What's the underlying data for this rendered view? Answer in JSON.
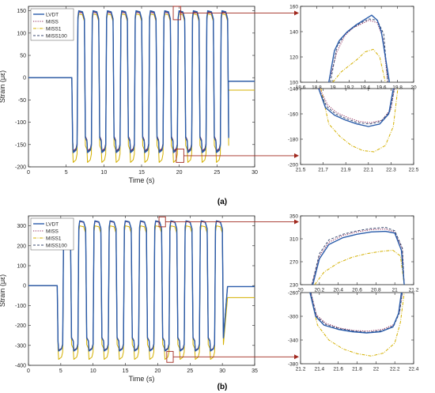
{
  "colors": {
    "LVDT": "#2a5caa",
    "MISS": "#8b2252",
    "MISS1": "#d4b000",
    "MISS100": "#3a4a70",
    "axis": "#222222",
    "marker": "#a0281e"
  },
  "panel_labels": [
    "(a)",
    "(b)"
  ],
  "chart_data": [
    {
      "id": "a-main",
      "type": "line",
      "title": "",
      "xlabel": "Time (s)",
      "ylabel": "Strain (με)",
      "xlim": [
        0,
        30
      ],
      "ylim": [
        -200,
        160
      ],
      "xticks": [
        0,
        5,
        10,
        15,
        20,
        25,
        30
      ],
      "xtick_labels": [
        "0",
        "5",
        "10",
        "15",
        "20",
        "25",
        "30"
      ],
      "yticks": [
        -200,
        -150,
        -100,
        -50,
        0,
        50,
        100,
        150
      ],
      "ytick_labels": [
        "-200",
        "-150",
        "-100",
        "-50",
        "0",
        "50",
        "100",
        "150"
      ],
      "grid": false,
      "legend_position": "top-left",
      "series": [
        {
          "name": "LVDT",
          "style": "solid"
        },
        {
          "name": "MISS",
          "style": "dotted"
        },
        {
          "name": "MISS1",
          "style": "dashdot"
        },
        {
          "name": "MISS100",
          "style": "dashed"
        }
      ],
      "cycles": {
        "start": 5.8,
        "period": 1.9,
        "count": 11,
        "max": 150,
        "min": -168,
        "miss1_max": 143,
        "miss1_min": -190,
        "end": 26.5,
        "miss1_tail": -28,
        "lvdt_tail": -8
      },
      "zoom_boxes": [
        {
          "x": [
            19.2,
            20.2
          ],
          "y": [
            130,
            160
          ]
        },
        {
          "x": [
            19.6,
            20.6
          ],
          "y": [
            -190,
            -160
          ]
        }
      ]
    },
    {
      "id": "a-zoom-top",
      "type": "line",
      "title": "",
      "xlabel": "",
      "ylabel": "",
      "xlim": [
        18.6,
        20
      ],
      "ylim": [
        100,
        160
      ],
      "xticks": [
        18.6,
        18.8,
        19,
        19.2,
        19.4,
        19.6,
        19.8,
        20
      ],
      "xtick_labels": [
        "18.6",
        "18.8",
        "19",
        "19.2",
        "19.4",
        "19.6",
        "19.8",
        "20"
      ],
      "yticks": [
        100,
        120,
        140,
        160
      ],
      "ytick_labels": [
        "100",
        "120",
        "140",
        "160"
      ],
      "grid": false,
      "series": [
        {
          "name": "LVDT",
          "x": [
            18.95,
            19.02,
            19.08,
            19.18,
            19.28,
            19.38,
            19.48,
            19.55,
            19.6,
            19.65,
            19.7
          ],
          "y": [
            100,
            125,
            133,
            140,
            145,
            149,
            153,
            149,
            140,
            120,
            100
          ]
        },
        {
          "name": "MISS",
          "x": [
            18.95,
            19.05,
            19.15,
            19.25,
            19.35,
            19.45,
            19.55,
            19.62,
            19.68
          ],
          "y": [
            100,
            124,
            137,
            143,
            146,
            149,
            147,
            135,
            100
          ]
        },
        {
          "name": "MISS1",
          "x": [
            19.0,
            19.1,
            19.2,
            19.3,
            19.4,
            19.5,
            19.58,
            19.65
          ],
          "y": [
            100,
            108,
            113,
            118,
            124,
            126,
            120,
            100
          ]
        },
        {
          "name": "MISS100",
          "x": [
            18.97,
            19.05,
            19.15,
            19.25,
            19.35,
            19.45,
            19.55,
            19.63,
            19.68
          ],
          "y": [
            100,
            128,
            138,
            143,
            147,
            150,
            149,
            138,
            100
          ]
        }
      ]
    },
    {
      "id": "a-zoom-bottom",
      "type": "line",
      "title": "",
      "xlabel": "",
      "ylabel": "",
      "xlim": [
        21.5,
        22.5
      ],
      "ylim": [
        -200,
        -140
      ],
      "xticks": [
        21.5,
        21.7,
        21.9,
        22.1,
        22.3,
        22.5
      ],
      "xtick_labels": [
        "21.5",
        "21.7",
        "21.9",
        "22.1",
        "22.3",
        "22.5"
      ],
      "yticks": [
        -200,
        -180,
        -160,
        -140
      ],
      "ytick_labels": [
        "-200",
        "-180",
        "-160",
        "-140"
      ],
      "grid": false,
      "series": [
        {
          "name": "LVDT",
          "x": [
            21.66,
            21.72,
            21.8,
            21.9,
            22.0,
            22.1,
            22.2,
            22.28,
            22.32
          ],
          "y": [
            -140,
            -155,
            -161,
            -165,
            -168,
            -170,
            -168,
            -160,
            -140
          ]
        },
        {
          "name": "MISS",
          "x": [
            21.67,
            21.74,
            21.82,
            21.92,
            22.02,
            22.12,
            22.22,
            22.3,
            22.33
          ],
          "y": [
            -140,
            -153,
            -159,
            -163,
            -166,
            -167,
            -165,
            -156,
            -140
          ]
        },
        {
          "name": "MISS1",
          "x": [
            21.68,
            21.75,
            21.85,
            21.95,
            22.05,
            22.15,
            22.25,
            22.32,
            22.36
          ],
          "y": [
            -140,
            -168,
            -178,
            -185,
            -189,
            -190,
            -185,
            -170,
            -140
          ]
        },
        {
          "name": "MISS100",
          "x": [
            21.66,
            21.73,
            21.81,
            21.91,
            22.01,
            22.11,
            22.21,
            22.29,
            22.33
          ],
          "y": [
            -140,
            -154,
            -160,
            -164,
            -167,
            -168,
            -166,
            -158,
            -140
          ]
        }
      ]
    },
    {
      "id": "b-main",
      "type": "line",
      "title": "",
      "xlabel": "Time (s)",
      "ylabel": "Strain (με)",
      "xlim": [
        0,
        35
      ],
      "ylim": [
        -400,
        350
      ],
      "xticks": [
        0,
        5,
        10,
        15,
        20,
        25,
        30,
        35
      ],
      "xtick_labels": [
        "0",
        "5",
        "10",
        "15",
        "20",
        "25",
        "30",
        "35"
      ],
      "yticks": [
        -400,
        -300,
        -200,
        -100,
        0,
        100,
        200,
        300
      ],
      "ytick_labels": [
        "-400",
        "-300",
        "-200",
        "-100",
        "0",
        "100",
        "200",
        "300"
      ],
      "grid": false,
      "legend_position": "top-left",
      "series": [
        {
          "name": "LVDT",
          "style": "solid"
        },
        {
          "name": "MISS",
          "style": "dotted"
        },
        {
          "name": "MISS1",
          "style": "dashdot"
        },
        {
          "name": "MISS100",
          "style": "dashed"
        }
      ],
      "cycles": {
        "start": 4.5,
        "period": 2.35,
        "count": 11,
        "max": 325,
        "min": -328,
        "miss1_max": 300,
        "miss1_min": -370,
        "end": 30.8,
        "miss1_tail": -60,
        "lvdt_tail": -5
      },
      "zoom_boxes": [
        {
          "x": [
            20.2,
            21.2
          ],
          "y": [
            295,
            345
          ]
        },
        {
          "x": [
            21.4,
            22.4
          ],
          "y": [
            -385,
            -330
          ]
        }
      ]
    },
    {
      "id": "b-zoom-top",
      "type": "line",
      "title": "",
      "xlabel": "",
      "ylabel": "",
      "xlim": [
        20,
        21.2
      ],
      "ylim": [
        230,
        350
      ],
      "xticks": [
        20,
        20.2,
        20.4,
        20.6,
        20.8,
        21,
        21.2
      ],
      "xtick_labels": [
        "20",
        "20.2",
        "20.4",
        "20.6",
        "20.8",
        "21",
        "21.2"
      ],
      "yticks": [
        230,
        270,
        310,
        350
      ],
      "ytick_labels": [
        "230",
        "270",
        "310",
        "350"
      ],
      "grid": false,
      "series": [
        {
          "name": "LVDT",
          "x": [
            20.13,
            20.2,
            20.3,
            20.45,
            20.6,
            20.75,
            20.9,
            21.0,
            21.07,
            21.1
          ],
          "y": [
            230,
            275,
            300,
            312,
            318,
            322,
            323,
            320,
            290,
            230
          ]
        },
        {
          "name": "MISS",
          "x": [
            20.12,
            20.2,
            20.3,
            20.45,
            20.6,
            20.75,
            20.9,
            21.0,
            21.08,
            21.1
          ],
          "y": [
            230,
            280,
            304,
            316,
            322,
            326,
            327,
            322,
            292,
            230
          ]
        },
        {
          "name": "MISS1",
          "x": [
            20.15,
            20.25,
            20.4,
            20.55,
            20.7,
            20.85,
            20.98,
            21.06,
            21.1
          ],
          "y": [
            230,
            252,
            268,
            278,
            284,
            288,
            290,
            280,
            230
          ]
        },
        {
          "name": "MISS100",
          "x": [
            20.12,
            20.2,
            20.3,
            20.45,
            20.6,
            20.75,
            20.9,
            21.0,
            21.08,
            21.1
          ],
          "y": [
            230,
            284,
            308,
            318,
            324,
            328,
            330,
            324,
            294,
            230
          ]
        }
      ]
    },
    {
      "id": "b-zoom-bottom",
      "type": "line",
      "title": "",
      "xlabel": "",
      "ylabel": "",
      "xlim": [
        21.2,
        22.4
      ],
      "ylim": [
        -380,
        -260
      ],
      "xticks": [
        21.2,
        21.4,
        21.6,
        21.8,
        22,
        22.2,
        22.4
      ],
      "xtick_labels": [
        "21.2",
        "21.4",
        "21.6",
        "21.8",
        "22",
        "22.2",
        "22.4"
      ],
      "yticks": [
        -380,
        -340,
        -300,
        -260
      ],
      "ytick_labels": [
        "-380",
        "-340",
        "-300",
        "-260"
      ],
      "grid": false,
      "series": [
        {
          "name": "LVDT",
          "x": [
            21.3,
            21.36,
            21.45,
            21.6,
            21.75,
            21.9,
            22.05,
            22.18,
            22.24,
            22.27
          ],
          "y": [
            -260,
            -300,
            -315,
            -322,
            -326,
            -328,
            -326,
            -318,
            -295,
            -260
          ]
        },
        {
          "name": "MISS",
          "x": [
            21.31,
            21.37,
            21.47,
            21.62,
            21.77,
            21.92,
            22.07,
            22.19,
            22.25,
            22.28
          ],
          "y": [
            -260,
            -298,
            -312,
            -320,
            -324,
            -325,
            -322,
            -314,
            -292,
            -260
          ]
        },
        {
          "name": "MISS1",
          "x": [
            21.3,
            21.38,
            21.5,
            21.65,
            21.8,
            21.95,
            22.08,
            22.2,
            22.26,
            22.3
          ],
          "y": [
            -260,
            -315,
            -340,
            -355,
            -363,
            -367,
            -362,
            -345,
            -310,
            -260
          ]
        },
        {
          "name": "MISS100",
          "x": [
            21.31,
            21.37,
            21.47,
            21.62,
            21.77,
            21.92,
            22.07,
            22.19,
            22.25,
            22.28
          ],
          "y": [
            -260,
            -300,
            -314,
            -321,
            -325,
            -327,
            -324,
            -316,
            -294,
            -260
          ]
        }
      ]
    }
  ]
}
